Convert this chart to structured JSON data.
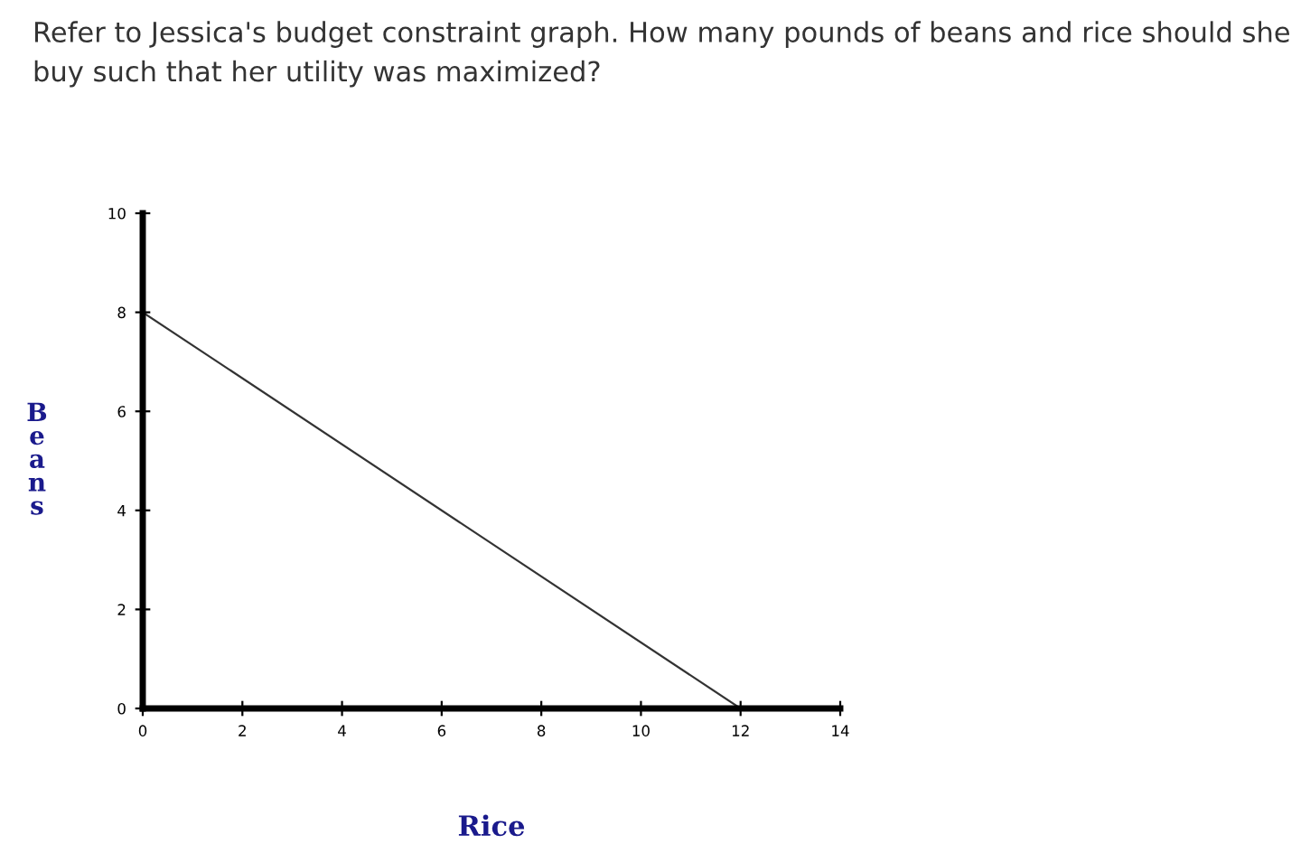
{
  "chart_data": {
    "type": "line",
    "title": "Refer to Jessica's budget constraint graph. How many pounds of beans and rice should she buy such that her utility was maximized?",
    "xlabel": "Rice",
    "ylabel": "Beans",
    "series": [
      {
        "x": [
          0,
          12
        ],
        "values": [
          8,
          0
        ],
        "color": "#333333"
      }
    ],
    "xlim": [
      0,
      14
    ],
    "xticks": [
      0,
      2,
      4,
      6,
      8,
      10,
      12,
      14
    ],
    "ylim": [
      0,
      10
    ],
    "yticks": [
      0,
      2,
      4,
      6,
      8,
      10
    ],
    "grid": false,
    "legend": false,
    "marker": "none",
    "line_style": "solid"
  }
}
